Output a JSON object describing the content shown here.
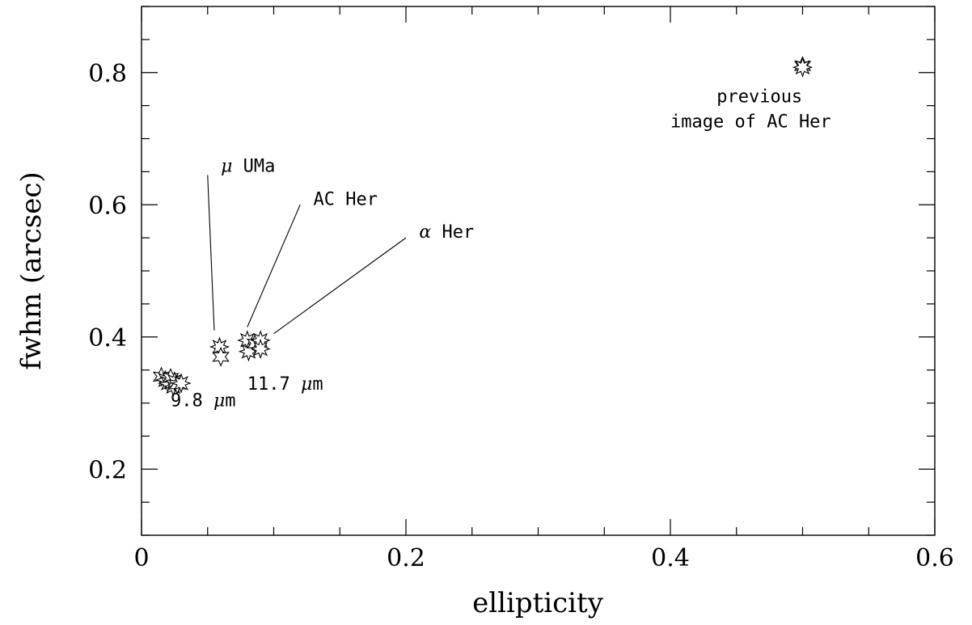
{
  "chart_data": {
    "type": "scatter",
    "title": "",
    "xlabel": "ellipticity",
    "ylabel": "fwhm (arcsec)",
    "xlim": [
      0,
      0.6
    ],
    "ylim": [
      0.1,
      0.9
    ],
    "x_ticks": [
      "0",
      "0.2",
      "0.4",
      "0.6"
    ],
    "y_ticks": [
      "0.2",
      "0.4",
      "0.6",
      "0.8"
    ],
    "x_tick_values": [
      0,
      0.2,
      0.4,
      0.6
    ],
    "y_tick_values": [
      0.2,
      0.4,
      0.6,
      0.8
    ],
    "x_minor_step": 0.05,
    "y_minor_step": 0.05,
    "grid": false,
    "marker": "star",
    "points": [
      {
        "x": 0.015,
        "y": 0.34
      },
      {
        "x": 0.018,
        "y": 0.335
      },
      {
        "x": 0.02,
        "y": 0.33
      },
      {
        "x": 0.022,
        "y": 0.338
      },
      {
        "x": 0.024,
        "y": 0.325
      },
      {
        "x": 0.025,
        "y": 0.333
      },
      {
        "x": 0.027,
        "y": 0.328
      },
      {
        "x": 0.03,
        "y": 0.33
      },
      {
        "x": 0.059,
        "y": 0.385
      },
      {
        "x": 0.06,
        "y": 0.37
      },
      {
        "x": 0.08,
        "y": 0.395
      },
      {
        "x": 0.081,
        "y": 0.378
      },
      {
        "x": 0.086,
        "y": 0.39
      },
      {
        "x": 0.09,
        "y": 0.395
      },
      {
        "x": 0.09,
        "y": 0.382
      },
      {
        "x": 0.5,
        "y": 0.81
      },
      {
        "x": 0.5,
        "y": 0.808
      }
    ],
    "annotations": [
      {
        "id": "mu-uma",
        "greek": "μ",
        "text": " UMa",
        "x": 0.06,
        "y": 0.65,
        "leader": {
          "from": [
            0.05,
            0.645
          ],
          "to": [
            0.055,
            0.41
          ]
        }
      },
      {
        "id": "ac-her",
        "greek": "",
        "text": "AC Her",
        "x": 0.13,
        "y": 0.6,
        "leader": {
          "from": [
            0.12,
            0.6
          ],
          "to": [
            0.08,
            0.415
          ]
        }
      },
      {
        "id": "alpha-her",
        "greek": "α",
        "text": " Her",
        "x": 0.21,
        "y": 0.55,
        "leader": {
          "from": [
            0.2,
            0.55
          ],
          "to": [
            0.1,
            0.405
          ]
        }
      },
      {
        "id": "wave-117",
        "greek": "",
        "text": "11.7 ",
        "greek_after": "μ",
        "text_after": "m",
        "x": 0.08,
        "y": 0.32
      },
      {
        "id": "wave-98",
        "greek": "",
        "text": "9.8 ",
        "greek_after": "μ",
        "text_after": "m",
        "x": 0.022,
        "y": 0.295
      },
      {
        "id": "previous-1",
        "greek": "",
        "text": "previous",
        "x": 0.435,
        "y": 0.755
      },
      {
        "id": "previous-2",
        "greek": "",
        "text": "image of AC Her",
        "x": 0.4,
        "y": 0.717
      }
    ]
  }
}
